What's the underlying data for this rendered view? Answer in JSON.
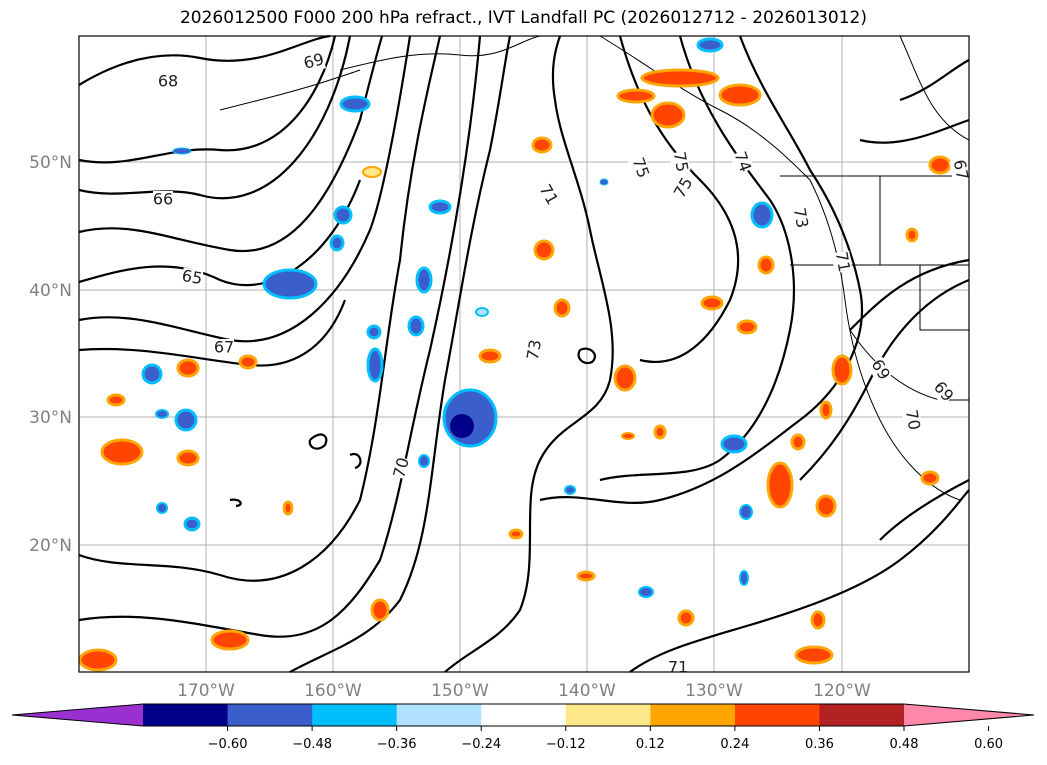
{
  "title": "2026012500 F000 200 hPa refract., IVT Landfall PC (2026012712 - 2026013012)",
  "map": {
    "lat_labels": [
      "50°N",
      "40°N",
      "30°N",
      "20°N"
    ],
    "lon_labels": [
      "170°W",
      "160°W",
      "150°W",
      "140°W",
      "130°W",
      "120°W"
    ],
    "contour_labels": [
      "68",
      "69",
      "66",
      "65",
      "67",
      "71",
      "75",
      "75",
      "75",
      "74",
      "73",
      "71",
      "73",
      "70",
      "69",
      "69",
      "70",
      "67",
      "71"
    ]
  },
  "colorbar": {
    "ticks": [
      "−0.60",
      "−0.48",
      "−0.36",
      "−0.24",
      "−0.12",
      "0.12",
      "0.24",
      "0.36",
      "0.48",
      "0.60"
    ],
    "colors": [
      "#9b30d0",
      "#00008b",
      "#3a5fcd",
      "#00bfff",
      "#b0e2ff",
      "#ffffff",
      "#ffe88a",
      "#ffa500",
      "#ff4500",
      "#b22222",
      "#ff88aa"
    ]
  }
}
